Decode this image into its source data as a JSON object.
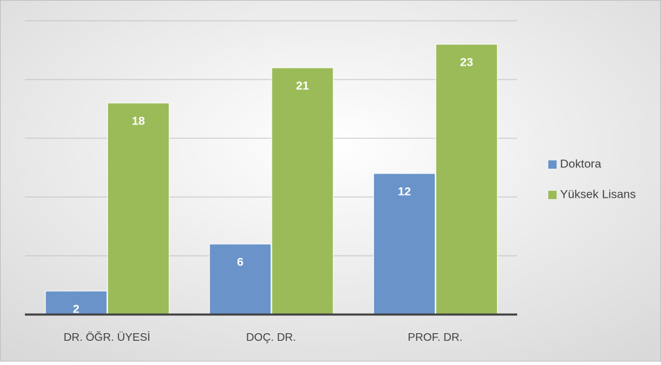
{
  "chart_data": {
    "type": "bar",
    "categories": [
      "DR. ÖĞR. ÜYESİ",
      "DOÇ. DR.",
      "PROF. DR."
    ],
    "series": [
      {
        "name": "Doktora",
        "color": "#6a93c9",
        "values": [
          2,
          6,
          12
        ]
      },
      {
        "name": "Yüksek Lisans",
        "color": "#9bbb59",
        "values": [
          18,
          21,
          23
        ]
      }
    ],
    "ylim": [
      0,
      25
    ],
    "yticks": [
      0,
      5,
      10,
      15,
      20,
      25
    ],
    "grid": true,
    "legend": "right"
  }
}
